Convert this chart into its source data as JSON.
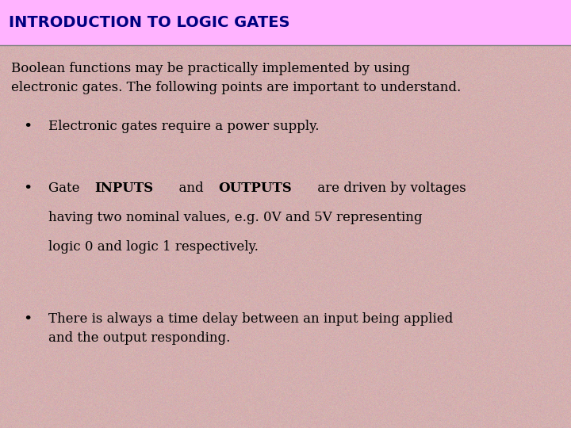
{
  "title": "INTRODUCTION TO LOGIC GATES",
  "title_bg_color": "#FFB3FF",
  "body_bg_color": "#D4B0B0",
  "title_text_color": "#000080",
  "body_text_color": "#000000",
  "title_fontsize": 14,
  "body_fontsize": 12,
  "intro_text": "Boolean functions may be practically implemented by using\nelectronic gates. The following points are important to understand.",
  "bullet1": "Electronic gates require a power supply.",
  "bullet3": "There is always a time delay between an input being applied\nand the output responding.",
  "fig_width": 7.2,
  "fig_height": 5.4,
  "dpi": 100
}
